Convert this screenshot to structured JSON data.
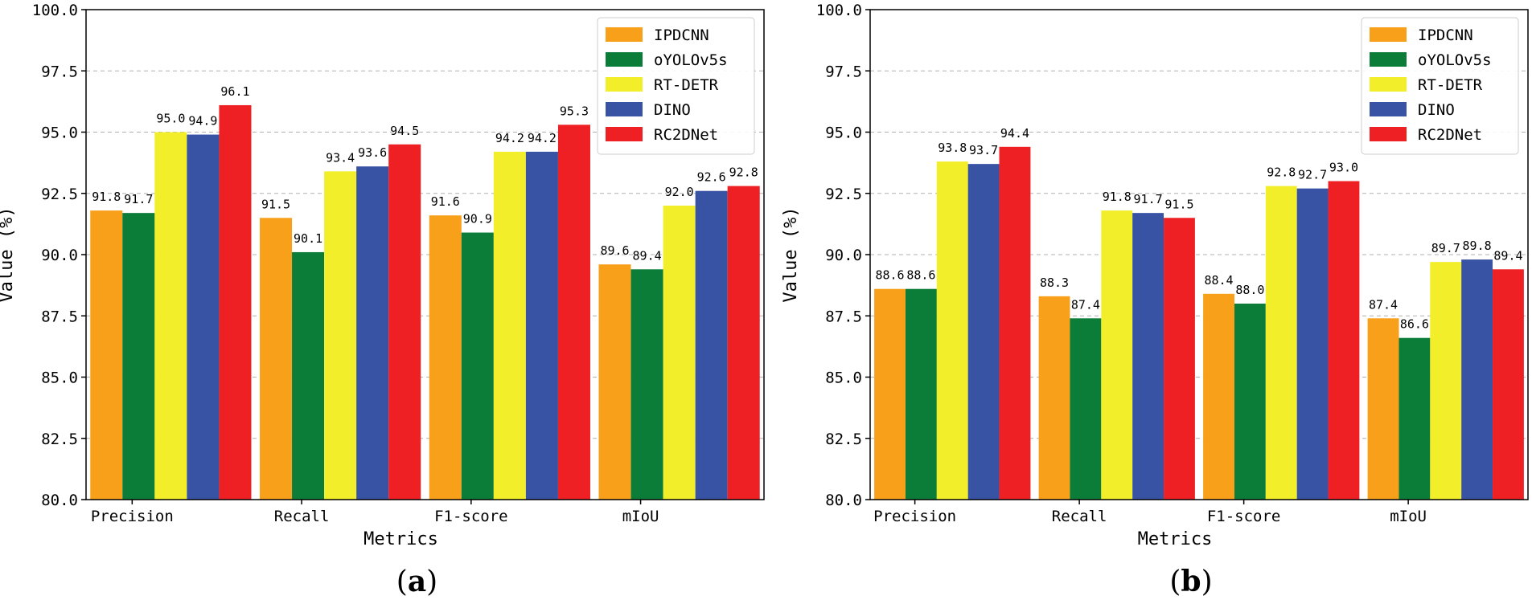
{
  "colors": {
    "IPDCNN": "#F9A01B",
    "oYOLOv5s": "#0B7D38",
    "RT-DETR": "#F2EF2A",
    "DINO": "#3953A4",
    "RC2DNet": "#EE2024",
    "grid": "#b0b0b0"
  },
  "chart_data": [
    {
      "type": "bar",
      "caption_open": "(",
      "caption_letter": "a",
      "caption_close": ")",
      "xlabel": "Metrics",
      "ylabel": "Value (%)",
      "ylim": [
        80.0,
        100.0
      ],
      "yticks": [
        "80.0",
        "82.5",
        "85.0",
        "87.5",
        "90.0",
        "92.5",
        "95.0",
        "97.5",
        "100.0"
      ],
      "categories": [
        "Precision",
        "Recall",
        "F1-score",
        "mIoU"
      ],
      "legend_position": "top-right",
      "series": [
        {
          "name": "IPDCNN",
          "values": [
            91.8,
            91.5,
            91.6,
            89.6
          ]
        },
        {
          "name": "oYOLOv5s",
          "values": [
            91.7,
            90.1,
            90.9,
            89.4
          ]
        },
        {
          "name": "RT-DETR",
          "values": [
            95.0,
            93.4,
            94.2,
            92.0
          ]
        },
        {
          "name": "DINO",
          "values": [
            94.9,
            93.6,
            94.2,
            92.6
          ]
        },
        {
          "name": "RC2DNet",
          "values": [
            96.1,
            94.5,
            95.3,
            92.8
          ]
        }
      ]
    },
    {
      "type": "bar",
      "caption_open": "(",
      "caption_letter": "b",
      "caption_close": ")",
      "xlabel": "Metrics",
      "ylabel": "Value (%)",
      "ylim": [
        80.0,
        100.0
      ],
      "yticks": [
        "80.0",
        "82.5",
        "85.0",
        "87.5",
        "90.0",
        "92.5",
        "95.0",
        "97.5",
        "100.0"
      ],
      "categories": [
        "Precision",
        "Recall",
        "F1-score",
        "mIoU"
      ],
      "legend_position": "top-right",
      "series": [
        {
          "name": "IPDCNN",
          "values": [
            88.6,
            88.3,
            88.4,
            87.4
          ]
        },
        {
          "name": "oYOLOv5s",
          "values": [
            88.6,
            87.4,
            88.0,
            86.6
          ]
        },
        {
          "name": "RT-DETR",
          "values": [
            93.8,
            91.8,
            92.8,
            89.7
          ]
        },
        {
          "name": "DINO",
          "values": [
            93.7,
            91.7,
            92.7,
            89.8
          ]
        },
        {
          "name": "RC2DNet",
          "values": [
            94.4,
            91.5,
            93.0,
            89.4
          ]
        }
      ]
    }
  ]
}
